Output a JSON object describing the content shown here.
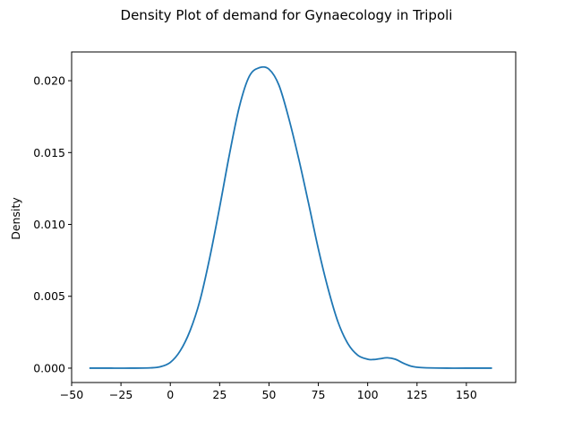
{
  "chart_data": {
    "type": "line",
    "title": "Density Plot of demand for Gynaecology in Tripoli",
    "xlabel": "",
    "ylabel": "Density",
    "xlim": [
      -50,
      175
    ],
    "ylim": [
      -0.001,
      0.022
    ],
    "x_ticks": [
      -50,
      -25,
      0,
      25,
      50,
      75,
      100,
      125,
      150
    ],
    "x_tick_labels": [
      "−50",
      "−25",
      "0",
      "25",
      "50",
      "75",
      "100",
      "125",
      "150"
    ],
    "y_ticks": [
      0.0,
      0.005,
      0.01,
      0.015,
      0.02
    ],
    "y_tick_labels": [
      "0.000",
      "0.005",
      "0.010",
      "0.015",
      "0.020"
    ],
    "grid": false,
    "series": [
      {
        "color": "#1f77b4",
        "x": [
          -41,
          -30,
          -20,
          -10,
          -5,
          0,
          5,
          10,
          15,
          20,
          25,
          30,
          35,
          40,
          45,
          50,
          55,
          60,
          65,
          70,
          75,
          80,
          85,
          90,
          95,
          100,
          103,
          106,
          110,
          114,
          118,
          122,
          126,
          130,
          140,
          150,
          163
        ],
        "y": [
          0.0,
          0.0,
          0.0,
          2e-05,
          0.0001,
          0.0004,
          0.0012,
          0.0026,
          0.0047,
          0.0077,
          0.0112,
          0.0149,
          0.0182,
          0.0203,
          0.0209,
          0.0208,
          0.0197,
          0.0174,
          0.0146,
          0.0115,
          0.0083,
          0.0055,
          0.0032,
          0.0017,
          0.0009,
          0.00062,
          0.0006,
          0.00065,
          0.00072,
          0.00062,
          0.00035,
          0.00014,
          5e-05,
          2e-05,
          0.0,
          0.0,
          0.0
        ]
      }
    ]
  }
}
